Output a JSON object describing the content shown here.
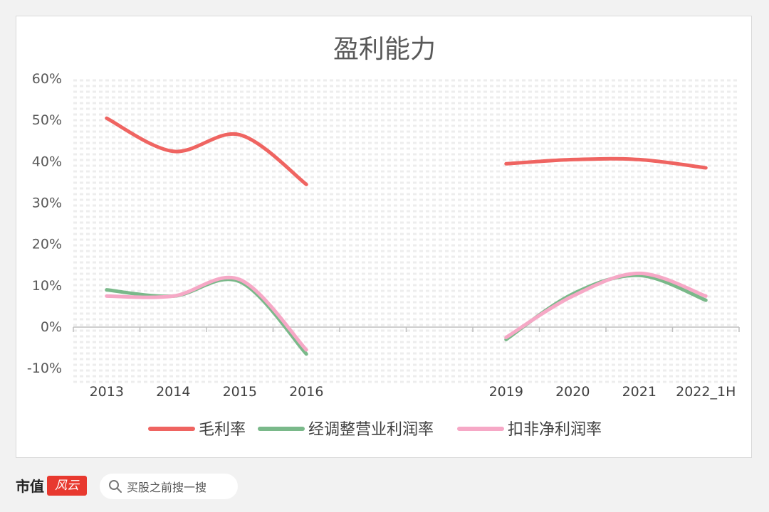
{
  "chart_data": {
    "type": "line",
    "title": "盈利能力",
    "categories": [
      "2013",
      "2014",
      "2015",
      "2016",
      "",
      "",
      "2019",
      "2020",
      "2021",
      "2022_1H"
    ],
    "ylim": [
      -10,
      60
    ],
    "yticks": [
      "60%",
      "50%",
      "40%",
      "30%",
      "20%",
      "10%",
      "0%",
      "-10%"
    ],
    "ytick_values": [
      60,
      50,
      40,
      30,
      20,
      10,
      0,
      -10
    ],
    "legend_position": "bottom",
    "smooth": true,
    "series": [
      {
        "name": "毛利率",
        "color": "#ef6461",
        "segments": [
          [
            [
              0,
              50.5
            ],
            [
              1,
              42.5
            ],
            [
              2,
              46.5
            ],
            [
              3,
              34.5
            ]
          ],
          [
            [
              6,
              39.5
            ],
            [
              7,
              40.5
            ],
            [
              8,
              40.5
            ],
            [
              9,
              38.5
            ]
          ]
        ]
      },
      {
        "name": "经调整营业利润率",
        "color": "#7ab98a",
        "segments": [
          [
            [
              0,
              9.0
            ],
            [
              1,
              7.5
            ],
            [
              2,
              11.0
            ],
            [
              3,
              -6.5
            ]
          ],
          [
            [
              6,
              -3.0
            ],
            [
              7,
              8.0
            ],
            [
              8,
              12.5
            ],
            [
              9,
              6.5
            ]
          ]
        ]
      },
      {
        "name": "扣非净利润率",
        "color": "#f6a8c6",
        "segments": [
          [
            [
              0,
              7.5
            ],
            [
              1,
              7.5
            ],
            [
              2,
              11.5
            ],
            [
              3,
              -5.5
            ]
          ],
          [
            [
              6,
              -2.5
            ],
            [
              7,
              7.5
            ],
            [
              8,
              13.0
            ],
            [
              9,
              7.5
            ]
          ]
        ]
      }
    ]
  },
  "footer": {
    "brand_text": "市值",
    "brand_seal": "风云",
    "search_placeholder": "买股之前搜一搜"
  }
}
